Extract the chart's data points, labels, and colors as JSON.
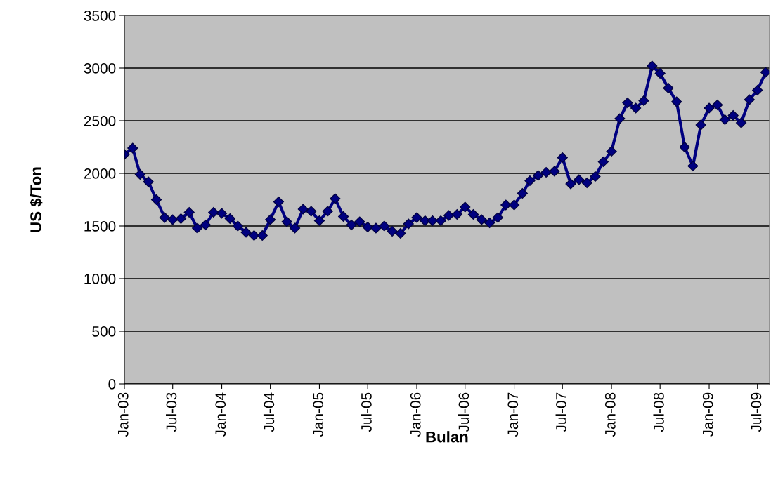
{
  "chart_data": {
    "type": "line",
    "xlabel": "Bulan",
    "ylabel": "US $/Ton",
    "x": [
      "2003-01",
      "2003-02",
      "2003-03",
      "2003-04",
      "2003-05",
      "2003-06",
      "2003-07",
      "2003-08",
      "2003-09",
      "2003-10",
      "2003-11",
      "2003-12",
      "2004-01",
      "2004-02",
      "2004-03",
      "2004-04",
      "2004-05",
      "2004-06",
      "2004-07",
      "2004-08",
      "2004-09",
      "2004-10",
      "2004-11",
      "2004-12",
      "2005-01",
      "2005-02",
      "2005-03",
      "2005-04",
      "2005-05",
      "2005-06",
      "2005-07",
      "2005-08",
      "2005-09",
      "2005-10",
      "2005-11",
      "2005-12",
      "2006-01",
      "2006-02",
      "2006-03",
      "2006-04",
      "2006-05",
      "2006-06",
      "2006-07",
      "2006-08",
      "2006-09",
      "2006-10",
      "2006-11",
      "2006-12",
      "2007-01",
      "2007-02",
      "2007-03",
      "2007-04",
      "2007-05",
      "2007-06",
      "2007-07",
      "2007-08",
      "2007-09",
      "2007-10",
      "2007-11",
      "2007-12",
      "2008-01",
      "2008-02",
      "2008-03",
      "2008-04",
      "2008-05",
      "2008-06",
      "2008-07",
      "2008-08",
      "2008-09",
      "2008-10",
      "2008-11",
      "2008-12",
      "2009-01",
      "2009-02",
      "2009-03",
      "2009-04",
      "2009-05",
      "2009-06",
      "2009-07",
      "2009-08"
    ],
    "series": [
      {
        "color": "#000080",
        "values": [
          2180,
          2240,
          1990,
          1920,
          1750,
          1580,
          1560,
          1570,
          1630,
          1480,
          1510,
          1630,
          1620,
          1570,
          1500,
          1440,
          1410,
          1410,
          1560,
          1730,
          1540,
          1480,
          1660,
          1640,
          1550,
          1640,
          1760,
          1590,
          1510,
          1540,
          1490,
          1480,
          1500,
          1450,
          1430,
          1520,
          1580,
          1550,
          1550,
          1550,
          1600,
          1610,
          1680,
          1610,
          1560,
          1530,
          1580,
          1700,
          1700,
          1810,
          1930,
          1980,
          2010,
          2020,
          2150,
          1900,
          1940,
          1910,
          1970,
          2110,
          2210,
          2520,
          2670,
          2620,
          2690,
          3020,
          2950,
          2810,
          2680,
          2250,
          2070,
          2460,
          2620,
          2650,
          2510,
          2550,
          2480,
          2700,
          2790,
          2960
        ]
      }
    ],
    "xlim": [
      "2003-01",
      "2009-08-15"
    ],
    "xticks": [
      {
        "value": "2003-01",
        "label": "Jan-03"
      },
      {
        "value": "2003-07",
        "label": "Jul-03"
      },
      {
        "value": "2004-01",
        "label": "Jan-04"
      },
      {
        "value": "2004-07",
        "label": "Jul-04"
      },
      {
        "value": "2005-01",
        "label": "Jan-05"
      },
      {
        "value": "2005-07",
        "label": "Jul-05"
      },
      {
        "value": "2006-01",
        "label": "Jan-06"
      },
      {
        "value": "2006-07",
        "label": "Jul-06"
      },
      {
        "value": "2007-01",
        "label": "Jan-07"
      },
      {
        "value": "2007-07",
        "label": "Jul-07"
      },
      {
        "value": "2008-01",
        "label": "Jan-08"
      },
      {
        "value": "2008-07",
        "label": "Jul-08"
      },
      {
        "value": "2009-01",
        "label": "Jan-09"
      },
      {
        "value": "2009-07",
        "label": "Jul-09"
      }
    ],
    "ylim": [
      0,
      3500
    ],
    "yticks": [
      0,
      500,
      1000,
      1500,
      2000,
      2500,
      3000,
      3500
    ],
    "grid": "y",
    "marker": "diamond",
    "line_style": "solid"
  }
}
